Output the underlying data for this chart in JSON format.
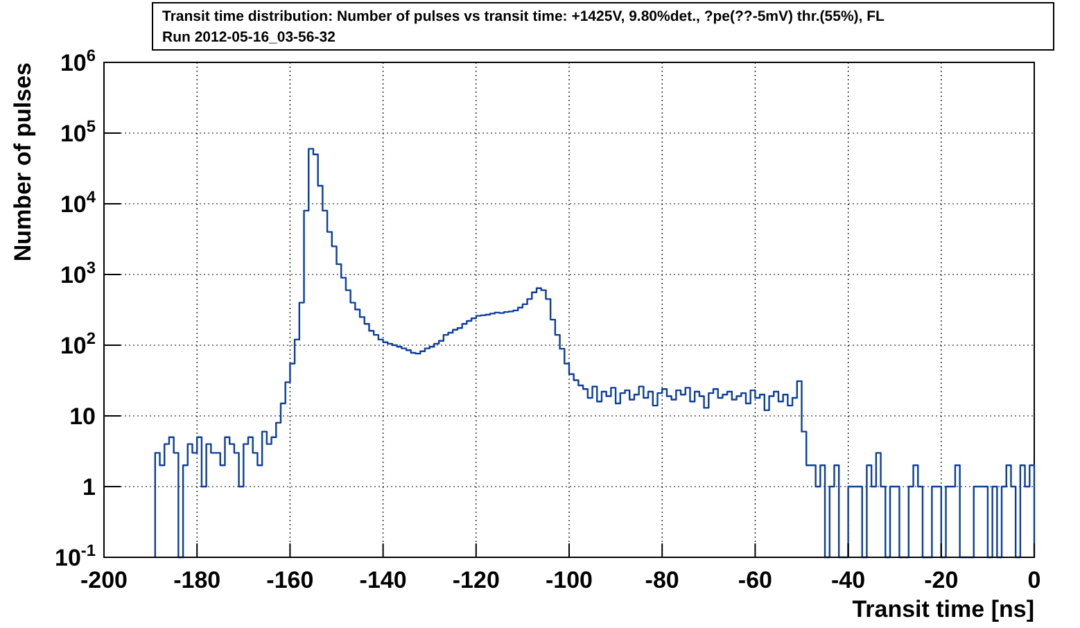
{
  "chart_data": {
    "type": "histogram",
    "title": "Transit time distribution: Number of pulses vs transit time: +1425V, 9.80%det., ?pe(??-5mV) thr.(55%), FL",
    "subtitle": "Run 2012-05-16_03-56-32",
    "xlabel": "Transit time [ns]",
    "ylabel": "Number of pulses",
    "color": "#0b3d9e",
    "log": "y",
    "grid": true,
    "xlim": [
      -200,
      0
    ],
    "xticks": [
      -200,
      -180,
      -160,
      -140,
      -120,
      -100,
      -80,
      -60,
      -40,
      -20,
      0
    ],
    "ylim": [
      0.1,
      1000000
    ],
    "yticks": [
      {
        "value": 0.1,
        "label": "10$^{-1}$"
      },
      1,
      10,
      {
        "value": 100,
        "label": "10$^{2}$"
      },
      {
        "value": 1000,
        "label": "10$^{3}$"
      },
      {
        "value": 10000,
        "label": "10$^{4}$"
      },
      {
        "value": 100000,
        "label": "10$^{5}$"
      },
      {
        "value": 1000000,
        "label": "10$^{6}$"
      }
    ],
    "bins": [
      -189,
      -188,
      -187,
      -186,
      -185,
      -184,
      -183,
      -182,
      -181,
      -180,
      -179,
      -178,
      -177,
      -176,
      -175,
      -174,
      -173,
      -172,
      -171,
      -170,
      -169,
      -168,
      -167,
      -166,
      -165,
      -164,
      -163,
      -162,
      -161,
      -160,
      -159,
      -158,
      -157,
      -156,
      -155,
      -154,
      -153,
      -152,
      -151,
      -150,
      -149,
      -148,
      -147,
      -146,
      -145,
      -144,
      -143,
      -142,
      -141,
      -140,
      -139,
      -138,
      -137,
      -136,
      -135,
      -134,
      -133,
      -132,
      -131,
      -130,
      -129,
      -128,
      -127,
      -126,
      -125,
      -124,
      -123,
      -122,
      -121,
      -120,
      -119,
      -118,
      -117,
      -116,
      -115,
      -114,
      -113,
      -112,
      -111,
      -110,
      -109,
      -108,
      -107,
      -106,
      -105,
      -104,
      -103,
      -102,
      -101,
      -100,
      -99,
      -98,
      -97,
      -96,
      -95,
      -94,
      -93,
      -92,
      -91,
      -90,
      -89,
      -88,
      -87,
      -86,
      -85,
      -84,
      -83,
      -82,
      -81,
      -80,
      -79,
      -78,
      -77,
      -76,
      -75,
      -74,
      -73,
      -72,
      -71,
      -70,
      -69,
      -68,
      -67,
      -66,
      -65,
      -64,
      -63,
      -62,
      -61,
      -60,
      -59,
      -58,
      -57,
      -56,
      -55,
      -54,
      -53,
      -52,
      -51,
      -50,
      -49,
      -48,
      -47,
      -46,
      -45,
      -44,
      -43,
      -42,
      -41,
      -40,
      -39,
      -38,
      -37,
      -36,
      -35,
      -34,
      -33,
      -32,
      -31,
      -30,
      -29,
      -28,
      -27,
      -26,
      -25,
      -24,
      -23,
      -22,
      -21,
      -20,
      -19,
      -18,
      -17,
      -16,
      -15,
      -14,
      -13,
      -12,
      -11,
      -10,
      -9,
      -8,
      -7,
      -6,
      -5,
      -4,
      -3,
      -2,
      -1,
      0
    ],
    "values": [
      3,
      2,
      4,
      5,
      3,
      null,
      2,
      4,
      3,
      5,
      1,
      4,
      3,
      3,
      2,
      5,
      4,
      3,
      1,
      4,
      5,
      3,
      2,
      6,
      4,
      5,
      8,
      15,
      30,
      55,
      120,
      400,
      8000,
      60000,
      50000,
      18000,
      8000,
      4000,
      2500,
      1400,
      900,
      600,
      400,
      320,
      250,
      200,
      160,
      140,
      120,
      110,
      105,
      100,
      95,
      90,
      85,
      78,
      76,
      82,
      90,
      95,
      105,
      115,
      140,
      150,
      165,
      175,
      200,
      220,
      240,
      260,
      265,
      270,
      280,
      290,
      285,
      295,
      300,
      310,
      340,
      380,
      450,
      560,
      640,
      600,
      450,
      230,
      140,
      89,
      55,
      39,
      32,
      27,
      24,
      18,
      26,
      16,
      22,
      19,
      25,
      15,
      21,
      23,
      17,
      20,
      26,
      18,
      22,
      14,
      21,
      24,
      19,
      17,
      23,
      20,
      25,
      16,
      22,
      19,
      13,
      21,
      24,
      18,
      20,
      22,
      17,
      19,
      21,
      15,
      23,
      18,
      20,
      12,
      19,
      22,
      16,
      20,
      14,
      18,
      31,
      6,
      2,
      2,
      1,
      2,
      null,
      1,
      2,
      null,
      null,
      1,
      1,
      1,
      null,
      2,
      1,
      3,
      1,
      null,
      1,
      1,
      null,
      null,
      1,
      2,
      1,
      null,
      null,
      1,
      1,
      null,
      1,
      1,
      2,
      null,
      null,
      null,
      1,
      1,
      1,
      null,
      1,
      null,
      1,
      2,
      1,
      null,
      2,
      1,
      2
    ]
  }
}
